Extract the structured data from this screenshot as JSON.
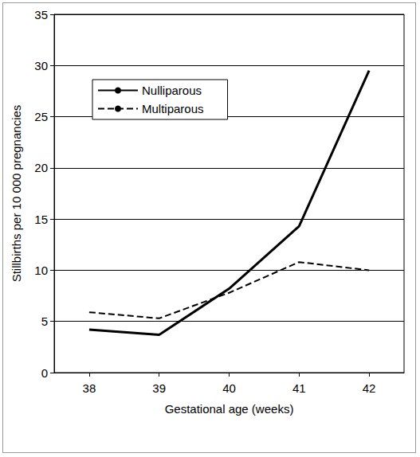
{
  "chart_data": {
    "type": "line",
    "x_label": "Gestational age (weeks)",
    "y_label": "Stillbirths per 10 000 pregnancies",
    "categories": [
      "38",
      "39",
      "40",
      "41",
      "42"
    ],
    "series": [
      {
        "name": "Nulliparous",
        "color": "#000000",
        "line_style": "solid",
        "values": [
          4.2,
          3.7,
          8.2,
          14.3,
          29.5
        ]
      },
      {
        "name": "Multiparous",
        "color": "#000000",
        "line_style": "dashed",
        "values": [
          5.9,
          5.3,
          7.8,
          10.8,
          10.0
        ]
      }
    ],
    "ylim": [
      0,
      35
    ],
    "yticks": [
      0,
      5,
      10,
      15,
      20,
      25,
      30,
      35
    ],
    "grid": true,
    "legend": "top-left"
  }
}
